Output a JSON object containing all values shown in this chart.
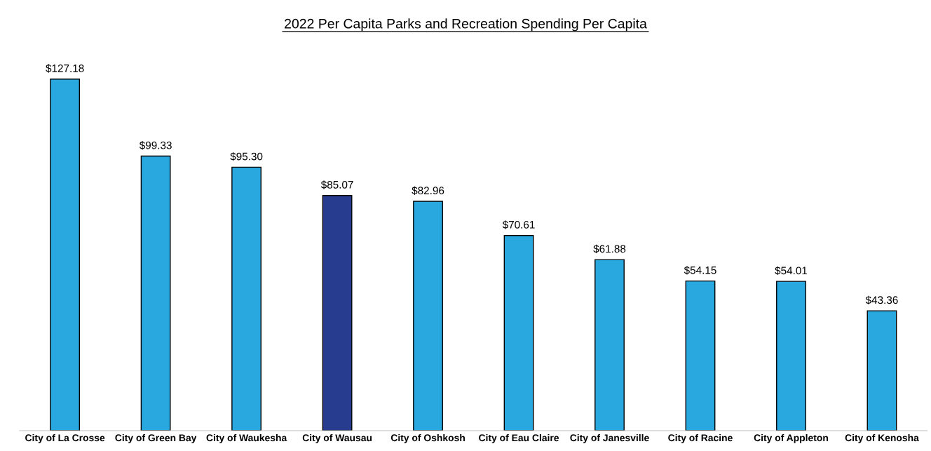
{
  "chart_data": {
    "type": "bar",
    "title": "2022 Per Capita Parks and Recreation Spending Per Capita",
    "categories": [
      "City of La Crosse",
      "City of Green Bay",
      "City of Waukesha",
      "City of Wausau",
      "City of Oshkosh",
      "City of Eau Claire",
      "City of Janesville",
      "City of Racine",
      "City of Appleton",
      "City of Kenosha"
    ],
    "values": [
      127.18,
      99.33,
      95.3,
      85.07,
      82.96,
      70.61,
      61.88,
      54.15,
      54.01,
      43.36
    ],
    "colors": [
      "#29a8e0",
      "#29a8e0",
      "#29a8e0",
      "#273c8f",
      "#29a8e0",
      "#29a8e0",
      "#29a8e0",
      "#29a8e0",
      "#29a8e0",
      "#29a8e0"
    ],
    "value_labels": [
      "$127.18",
      "$99.33",
      "$95.30",
      "$85.07",
      "$82.96",
      "$70.61",
      "$61.88",
      "$54.15",
      "$54.01",
      "$43.36"
    ],
    "tick_labels": "x",
    "grid": false,
    "legend": false
  }
}
